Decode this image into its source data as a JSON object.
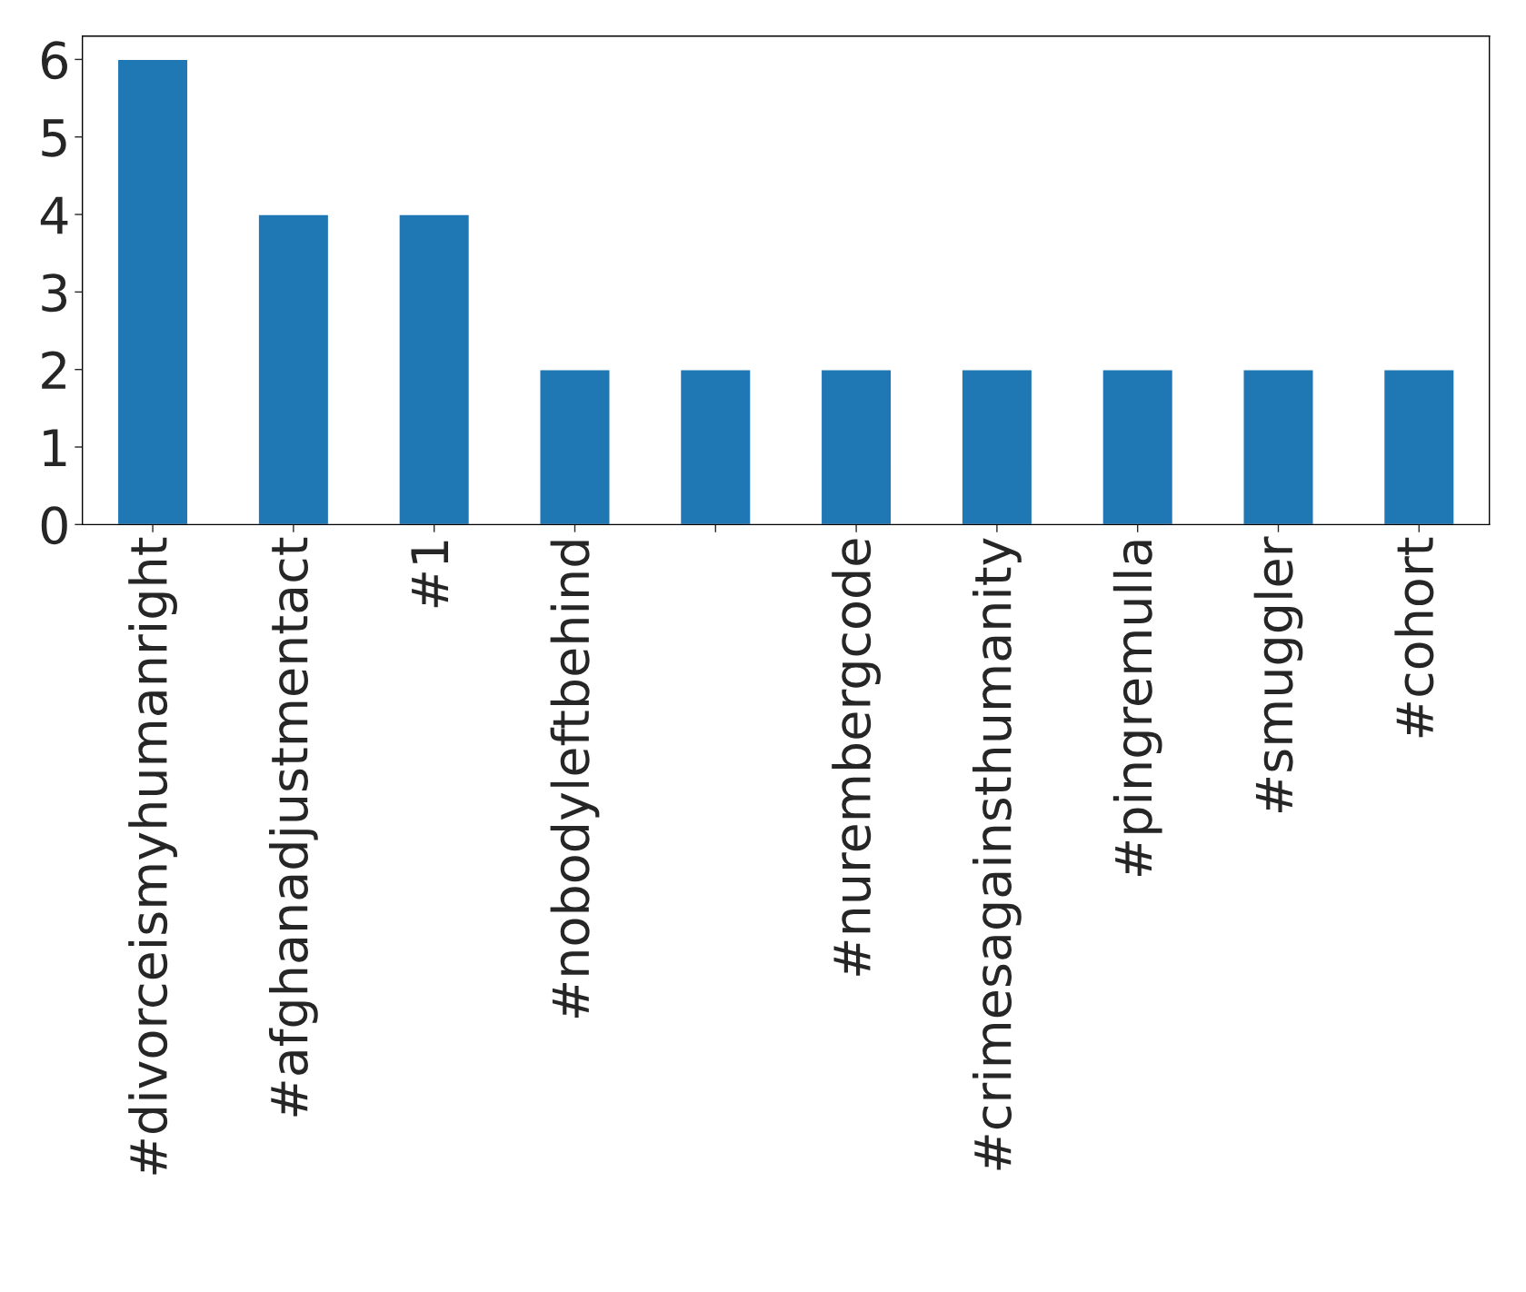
{
  "chart_data": {
    "type": "bar",
    "categories": [
      "#divorceismyhumanright",
      "#afghanadjustmentact",
      "#1",
      "#nobodyleftbehind",
      null,
      "#nurembergcode",
      "#crimesagainsthumanity",
      "#pingremulla",
      "#smuggler",
      "#cohort"
    ],
    "values": [
      6,
      4,
      4,
      2,
      2,
      2,
      2,
      2,
      2,
      2
    ],
    "color": "#1f77b4",
    "ylim": [
      0,
      6.3
    ],
    "yticks": [
      0,
      1,
      2,
      3,
      4,
      5,
      6
    ],
    "grid": false,
    "legend": false
  }
}
